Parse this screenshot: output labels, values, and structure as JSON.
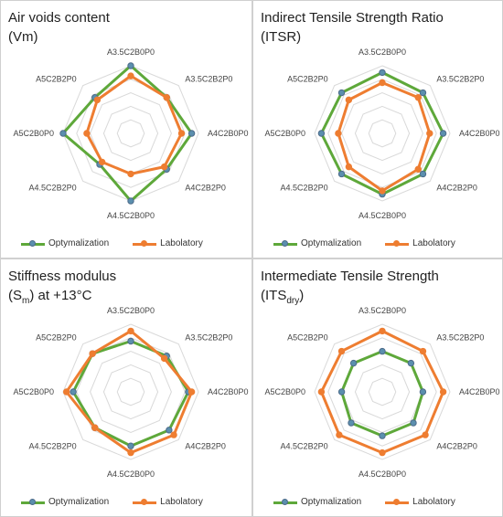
{
  "chart_data": [
    {
      "type": "radar",
      "title_main": "Air voids content",
      "title_sub": "(Vm)",
      "title_sub_script": "",
      "title_suffix": "",
      "categories": [
        "A3.5C2B0P0",
        "A3.5C2B2P0",
        "A4C2B0P0",
        "A4C2B2P0",
        "A4.5C2B0P0",
        "A4.5C2B2P0",
        "A5C2B0P0",
        "A5C2B2P0"
      ],
      "rmax": 10,
      "series": [
        {
          "name": "Optymalization",
          "color": "#5ea83a",
          "values": [
            10,
            7.5,
            9,
            7.5,
            10,
            6.5,
            10,
            7.5
          ]
        },
        {
          "name": "Labolatory",
          "color": "#ee7d31",
          "values": [
            8.5,
            7.5,
            7.5,
            7,
            6,
            6,
            6.5,
            7
          ]
        }
      ],
      "grid_levels": 5
    },
    {
      "type": "radar",
      "title_main": "Indirect Tensile Strength Ratio",
      "title_sub": "(ITSR)",
      "title_sub_script": "",
      "title_suffix": "",
      "categories": [
        "A3.5C2B0P0",
        "A3.5C2B2P0",
        "A4C2B0P0",
        "A4C2B2P0",
        "A4.5C2B0P0",
        "A4.5C2B2P0",
        "A5C2B0P0",
        "A5C2B2P0"
      ],
      "rmax": 10,
      "series": [
        {
          "name": "Optymalization",
          "color": "#5ea83a",
          "values": [
            9,
            8.5,
            9,
            8.5,
            9,
            8.5,
            9,
            8.5
          ]
        },
        {
          "name": "Labolatory",
          "color": "#ee7d31",
          "values": [
            7.5,
            7.5,
            7,
            7.5,
            8.5,
            7,
            6.5,
            7
          ]
        }
      ],
      "grid_levels": 5
    },
    {
      "type": "radar",
      "title_main": "Stiffness modulus",
      "title_sub": "(S",
      "title_sub_script": "m",
      "title_suffix": ")  at +13°C",
      "categories": [
        "A3.5C2B0P0",
        "A3.5C2B2P0",
        "A4C2B0P0",
        "A4C2B2P0",
        "A4.5C2B0P0",
        "A4.5C2B2P0",
        "A5C2B0P0",
        "A5C2B2P0"
      ],
      "rmax": 10,
      "series": [
        {
          "name": "Optymalization",
          "color": "#5ea83a",
          "values": [
            7.5,
            7.5,
            8.5,
            8,
            8,
            7.5,
            8.5,
            8
          ]
        },
        {
          "name": "Labolatory",
          "color": "#ee7d31",
          "values": [
            9,
            7,
            9,
            9,
            9,
            7.5,
            9.5,
            8
          ]
        }
      ],
      "grid_levels": 5
    },
    {
      "type": "radar",
      "title_main": "Intermediate Tensile Strength",
      "title_sub": "(ITS",
      "title_sub_script": "dry",
      "title_suffix": ")",
      "categories": [
        "A3.5C2B0P0",
        "A3.5C2B2P0",
        "A4C2B0P0",
        "A4C2B2P0",
        "A4.5C2B0P0",
        "A4.5C2B2P0",
        "A5C2B0P0",
        "A5C2B2P0"
      ],
      "rmax": 10,
      "series": [
        {
          "name": "Optymalization",
          "color": "#5ea83a",
          "values": [
            6,
            6,
            6,
            6.5,
            6.5,
            6.5,
            6,
            6
          ]
        },
        {
          "name": "Labolatory",
          "color": "#ee7d31",
          "values": [
            9,
            8.5,
            9,
            9,
            9,
            9,
            9,
            8.5
          ]
        }
      ],
      "grid_levels": 5
    }
  ]
}
